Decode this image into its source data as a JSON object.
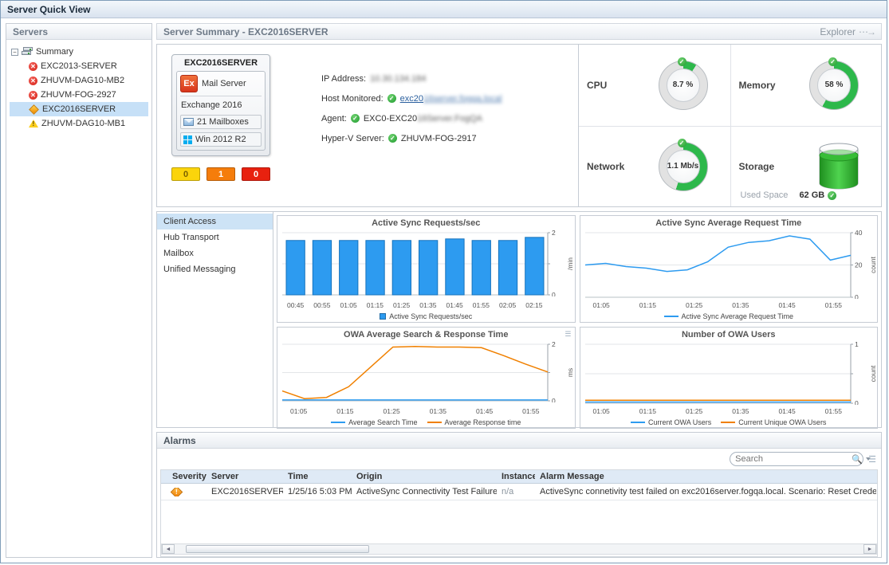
{
  "window": {
    "title": "Server Quick View"
  },
  "sidebar": {
    "header": "Servers",
    "tree": {
      "root_label": "Summary",
      "items": [
        {
          "label": "EXC2013-SERVER",
          "status": "error",
          "selected": false
        },
        {
          "label": "ZHUVM-DAG10-MB2",
          "status": "error",
          "selected": false
        },
        {
          "label": "ZHUVM-FOG-2927",
          "status": "error",
          "selected": false
        },
        {
          "label": "EXC2016SERVER",
          "status": "critical",
          "selected": true
        },
        {
          "label": "ZHUVM-DAG10-MB1",
          "status": "warning",
          "selected": false
        }
      ]
    }
  },
  "main": {
    "header": "Server Summary - EXC2016SERVER",
    "explorer": "Explorer",
    "card": {
      "name": "EXC2016SERVER",
      "role_badge": "Ex",
      "role": "Mail Server",
      "exchange": "Exchange 2016",
      "mailboxes": "21 Mailboxes",
      "os": "Win 2012 R2",
      "alarm_counts": [
        {
          "value": "0",
          "color": "#fbd40b",
          "text_color": "#7a6200"
        },
        {
          "value": "1",
          "color": "#f57d0b",
          "text_color": "#ffffff"
        },
        {
          "value": "0",
          "color": "#e8210f",
          "text_color": "#ffffff"
        }
      ]
    },
    "details": [
      {
        "label": "IP Address:",
        "clear": "",
        "blurred": "10.30.134.184",
        "check": false,
        "link": false
      },
      {
        "label": "Host Monitored:",
        "clear": "exc20",
        "blurred": "16server.fogqa.local",
        "check": true,
        "link": true
      },
      {
        "label": "Agent:",
        "clear": "EXC0-EXC20",
        "blurred": "16Server.FogQA",
        "check": true,
        "link": false
      },
      {
        "label": "Hyper-V Server:",
        "clear": "ZHUVM-FOG-2917",
        "blurred": "",
        "check": true,
        "link": false
      }
    ],
    "gauges": [
      {
        "label": "CPU",
        "value": "8.7 %",
        "percent": 9
      },
      {
        "label": "Memory",
        "value": "58 %",
        "percent": 58
      },
      {
        "label": "Network",
        "value": "1.1 Mb/s",
        "percent": 55
      },
      {
        "label": "Storage",
        "value": "62 GB",
        "sub_label": "Used Space",
        "percent": 85
      }
    ],
    "tabs": [
      {
        "label": "Client Access",
        "selected": true
      },
      {
        "label": "Hub Transport",
        "selected": false
      },
      {
        "label": "Mailbox",
        "selected": false
      },
      {
        "label": "Unified Messaging",
        "selected": false
      }
    ],
    "accent_colors": {
      "series_blue": "#2d9bf0",
      "series_orange": "#f08000",
      "gauge_green": "#2db84b"
    }
  },
  "chart_data": [
    {
      "id": "active-sync-requests",
      "type": "bar",
      "title": "Active Sync Requests/sec",
      "categories": [
        "00:45",
        "00:55",
        "01:05",
        "01:15",
        "01:25",
        "01:35",
        "01:45",
        "01:55",
        "02:05",
        "02:15"
      ],
      "values": [
        1.75,
        1.75,
        1.75,
        1.75,
        1.75,
        1.75,
        1.8,
        1.75,
        1.75,
        1.85
      ],
      "ylim": [
        0,
        2
      ],
      "yticks": [
        [
          0,
          "0"
        ],
        [
          1,
          ""
        ],
        [
          2,
          "2"
        ]
      ],
      "unit": "/min",
      "color": "#2d9bf0",
      "legend": [
        {
          "label": "Active Sync Requests/sec",
          "color": "#2d9bf0",
          "marker": "square"
        }
      ]
    },
    {
      "id": "active-sync-avg-time",
      "type": "line",
      "title": "Active Sync Average Request Time",
      "categories": [
        "01:05",
        "01:15",
        "01:25",
        "01:35",
        "01:45",
        "01:55"
      ],
      "series": [
        {
          "name": "Active Sync Average Request Time",
          "color": "#2d9bf0",
          "values": [
            20,
            21,
            19,
            18,
            16,
            17,
            22,
            31,
            34,
            35,
            38,
            36,
            23,
            26
          ]
        }
      ],
      "ylim": [
        0,
        40
      ],
      "yticks": [
        [
          0,
          "0"
        ],
        [
          20,
          "20"
        ],
        [
          40,
          "40"
        ]
      ],
      "unit": "count",
      "legend": [
        {
          "label": "Active Sync Average Request Time",
          "color": "#2d9bf0",
          "marker": "line"
        }
      ]
    },
    {
      "id": "owa-search-response",
      "type": "line",
      "title": "OWA Average Search & Response Time",
      "categories": [
        "01:05",
        "01:15",
        "01:25",
        "01:35",
        "01:45",
        "01:55"
      ],
      "series": [
        {
          "name": "Average Search Time",
          "color": "#2d9bf0",
          "values": [
            0.03,
            0.03,
            0.03,
            0.03,
            0.03,
            0.03,
            0.03,
            0.03,
            0.03,
            0.03,
            0.03,
            0.03,
            0.03
          ]
        },
        {
          "name": "Average Response time",
          "color": "#f08000",
          "values": [
            0.35,
            0.08,
            0.12,
            0.5,
            1.2,
            1.9,
            1.92,
            1.9,
            1.9,
            1.88,
            1.6,
            1.3,
            1.02
          ]
        }
      ],
      "ylim": [
        0,
        2
      ],
      "yticks": [
        [
          0,
          "0"
        ],
        [
          1,
          ""
        ],
        [
          2,
          "2"
        ]
      ],
      "unit": "ms",
      "legend": [
        {
          "label": "Average Search Time",
          "color": "#2d9bf0",
          "marker": "line"
        },
        {
          "label": "Average Response time",
          "color": "#f08000",
          "marker": "line"
        }
      ],
      "has_menu_icon": true
    },
    {
      "id": "owa-users",
      "type": "line",
      "title": "Number of OWA Users",
      "categories": [
        "01:05",
        "01:15",
        "01:25",
        "01:35",
        "01:45",
        "01:55"
      ],
      "series": [
        {
          "name": "Current OWA Users",
          "color": "#2d9bf0",
          "values": [
            0.02,
            0.02,
            0.02,
            0.02,
            0.02,
            0.02,
            0.02,
            0.02,
            0.02,
            0.02,
            0.02,
            0.02,
            0.02
          ]
        },
        {
          "name": "Current Unique OWA Users",
          "color": "#f08000",
          "values": [
            0.05,
            0.05,
            0.05,
            0.05,
            0.05,
            0.05,
            0.05,
            0.05,
            0.05,
            0.05,
            0.05,
            0.05,
            0.05
          ]
        }
      ],
      "ylim": [
        0,
        1
      ],
      "yticks": [
        [
          0,
          "0"
        ],
        [
          0.5,
          ""
        ],
        [
          1,
          "1"
        ]
      ],
      "unit": "count",
      "legend": [
        {
          "label": "Current OWA Users",
          "color": "#2d9bf0",
          "marker": "line"
        },
        {
          "label": "Current Unique OWA Users",
          "color": "#f08000",
          "marker": "line"
        }
      ]
    }
  ],
  "alarms": {
    "header": "Alarms",
    "search_placeholder": "Search",
    "columns": [
      "Severity",
      "Server",
      "Time",
      "Origin",
      "Instance",
      "Alarm Message"
    ],
    "rows": [
      {
        "severity": "critical",
        "server": "EXC2016SERVER",
        "time": "1/25/16 5:03 PM",
        "origin": "ActiveSync Connectivity Test Failure",
        "instance": "n/a",
        "message": "ActiveSync connetivity test failed on exc2016server.fogqa.local. Scenario: Reset Crede"
      }
    ]
  }
}
